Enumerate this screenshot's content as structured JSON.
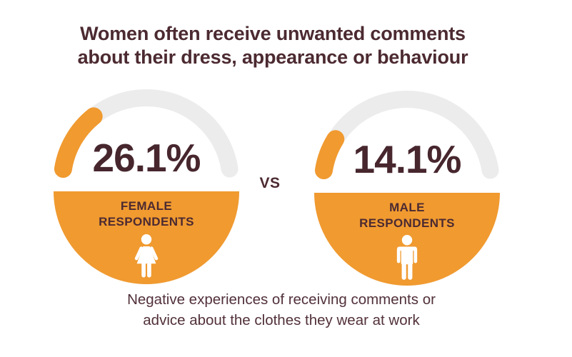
{
  "title": {
    "line1": "Women often receive unwanted comments",
    "line2": "about their dress, appearance or behaviour"
  },
  "gauges": [
    {
      "value": 26.1,
      "percent_label": "26.1%",
      "label_line1": "FEMALE",
      "label_line2": "RESPONDENTS",
      "icon": "female-icon"
    },
    {
      "value": 14.1,
      "percent_label": "14.1%",
      "label_line1": "MALE",
      "label_line2": "RESPONDENTS",
      "icon": "male-icon"
    }
  ],
  "vs_label": "VS",
  "caption": {
    "line1": "Negative experiences of receiving comments or",
    "line2": "advice about the clothes they wear at work"
  },
  "colors": {
    "accent_orange": "#F09A30",
    "track_gray": "#ECECEC",
    "text_dark": "#4C2A31",
    "icon_white": "#FFFFFF"
  },
  "chart_data": {
    "type": "gauge",
    "title": "Women often receive unwanted comments about their dress, appearance or behaviour",
    "caption": "Negative experiences of receiving comments or advice about the clothes they wear at work",
    "unit": "%",
    "gauge_range": [
      0,
      100
    ],
    "separator": "VS",
    "series": [
      {
        "name": "Female respondents",
        "value": 26.1
      },
      {
        "name": "Male respondents",
        "value": 14.1
      }
    ],
    "legend_position": "none",
    "grid": false
  }
}
